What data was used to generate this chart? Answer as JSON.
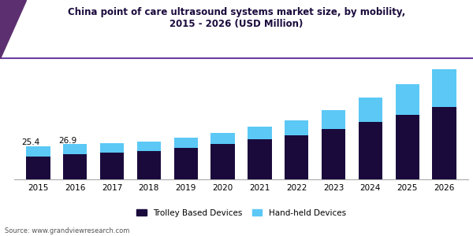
{
  "title_line1": "China point of care ultrasound systems market size, by mobility,",
  "title_line2": "2015 - 2026 (USD Million)",
  "years": [
    2015,
    2016,
    2017,
    2018,
    2019,
    2020,
    2021,
    2022,
    2023,
    2024,
    2025,
    2026
  ],
  "trolley": [
    17.5,
    19.0,
    20.5,
    21.8,
    24.0,
    27.0,
    30.5,
    33.5,
    38.5,
    44.0,
    49.5,
    55.0
  ],
  "handheld": [
    7.9,
    7.9,
    7.2,
    7.0,
    7.8,
    8.5,
    9.5,
    11.5,
    14.5,
    18.5,
    23.0,
    29.0
  ],
  "trolley_color": "#1a0a3c",
  "handheld_color": "#5bc8f5",
  "annotation_2015": "25.4",
  "annotation_2016": "26.9",
  "source_text": "Source: www.grandviewresearch.com",
  "legend_trolley": "Trolley Based Devices",
  "legend_handheld": "Hand-held Devices",
  "background_color": "#ffffff",
  "title_border_color": "#6b3fa0",
  "bar_width": 0.65,
  "ylim_max": 90
}
